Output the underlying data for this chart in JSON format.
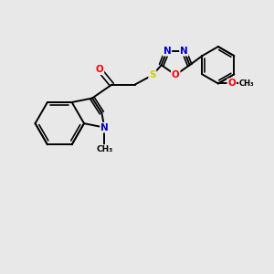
{
  "bg_color": "#e8e8e8",
  "bond_color": "#000000",
  "atom_colors": {
    "N": "#0000cc",
    "O": "#ff0000",
    "S": "#cccc00",
    "C": "#000000"
  },
  "scale": 1.0
}
